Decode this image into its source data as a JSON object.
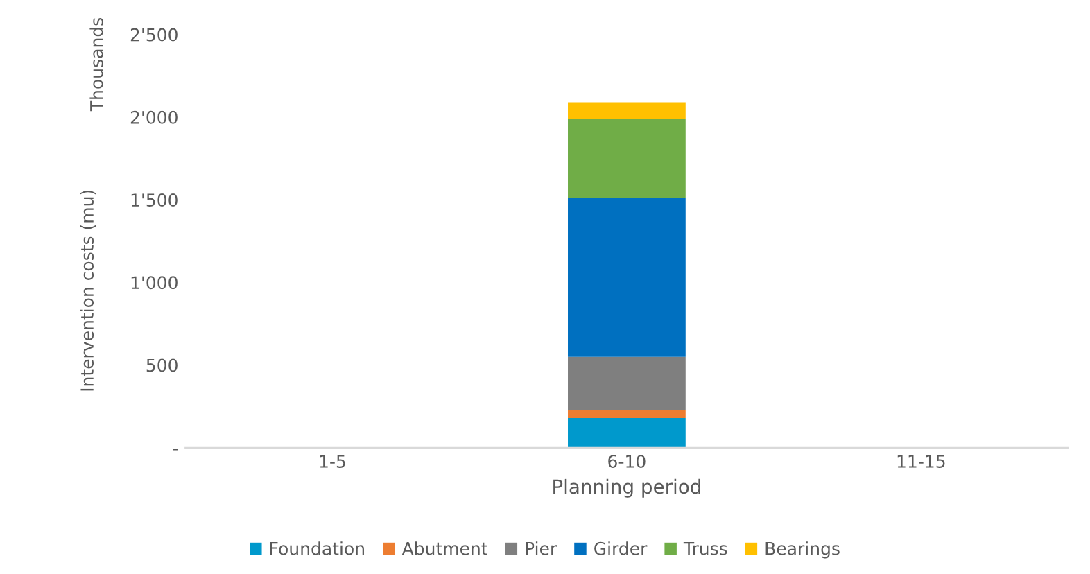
{
  "chart_data": {
    "type": "bar",
    "stacked": true,
    "xlabel": "Planning period",
    "ylabel": "Intervention costs (mu)",
    "annotations": [
      "Thousands"
    ],
    "categories": [
      "1-5",
      "6-10",
      "11-15"
    ],
    "series": [
      {
        "name": "Foundation",
        "color": "#0099cc",
        "values": [
          0,
          180,
          0
        ]
      },
      {
        "name": "Abutment",
        "color": "#ed7d31",
        "values": [
          0,
          50,
          0
        ]
      },
      {
        "name": "Pier",
        "color": "#7f7f7f",
        "values": [
          0,
          320,
          0
        ]
      },
      {
        "name": "Girder",
        "color": "#0070c0",
        "values": [
          0,
          960,
          0
        ]
      },
      {
        "name": "Truss",
        "color": "#70ad47",
        "values": [
          0,
          480,
          0
        ]
      },
      {
        "name": "Bearings",
        "color": "#ffc000",
        "values": [
          0,
          100,
          0
        ]
      }
    ],
    "ylim": [
      0,
      2500
    ],
    "yticks": [
      {
        "value": 0,
        "label": "-"
      },
      {
        "value": 500,
        "label": "500"
      },
      {
        "value": 1000,
        "label": "1'000"
      },
      {
        "value": 1500,
        "label": "1'500"
      },
      {
        "value": 2000,
        "label": "2'000"
      },
      {
        "value": 2500,
        "label": "2'500"
      }
    ],
    "grid": false,
    "legend": "bottom"
  }
}
